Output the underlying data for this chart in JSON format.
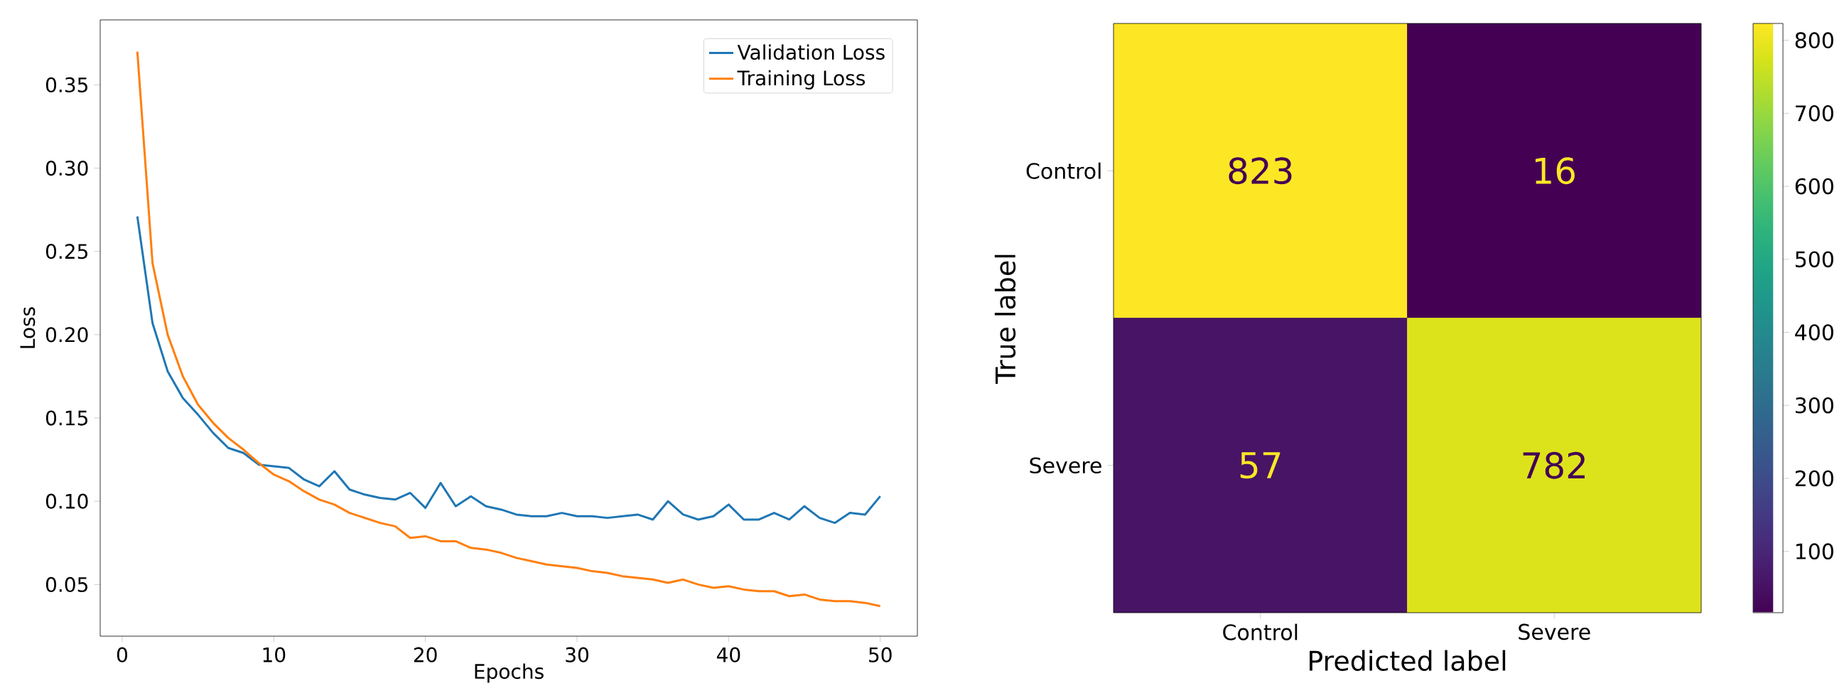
{
  "chart_data": [
    {
      "type": "line",
      "xlabel": "Epochs",
      "ylabel": "Loss",
      "legend": "top right",
      "x": [
        1,
        2,
        3,
        4,
        5,
        6,
        7,
        8,
        9,
        10,
        11,
        12,
        13,
        14,
        15,
        16,
        17,
        18,
        19,
        20,
        21,
        22,
        23,
        24,
        25,
        26,
        27,
        28,
        29,
        30,
        31,
        32,
        33,
        34,
        35,
        36,
        37,
        38,
        39,
        40,
        41,
        42,
        43,
        44,
        45,
        46,
        47,
        48,
        49,
        50
      ],
      "xlim": [
        -1.45,
        52.45
      ],
      "xticks": [
        0,
        10,
        20,
        30,
        40,
        50
      ],
      "ylim": [
        0.019,
        0.389
      ],
      "yticks": [
        {
          "value": 0.05,
          "label": "0.05"
        },
        {
          "value": 0.1,
          "label": "0.10"
        },
        {
          "value": 0.15,
          "label": "0.15"
        },
        {
          "value": 0.2,
          "label": "0.20"
        },
        {
          "value": 0.25,
          "label": "0.25"
        },
        {
          "value": 0.3,
          "label": "0.30"
        },
        {
          "value": 0.35,
          "label": "0.35"
        }
      ],
      "series": [
        {
          "name": "Validation Loss",
          "color": "#1f77b4",
          "values": [
            0.271,
            0.207,
            0.178,
            0.162,
            0.152,
            0.141,
            0.132,
            0.129,
            0.122,
            0.121,
            0.12,
            0.113,
            0.109,
            0.118,
            0.107,
            0.104,
            0.102,
            0.101,
            0.105,
            0.096,
            0.111,
            0.097,
            0.103,
            0.097,
            0.095,
            0.092,
            0.091,
            0.091,
            0.093,
            0.091,
            0.091,
            0.09,
            0.091,
            0.092,
            0.089,
            0.1,
            0.092,
            0.089,
            0.091,
            0.098,
            0.089,
            0.089,
            0.093,
            0.089,
            0.097,
            0.09,
            0.087,
            0.093,
            0.092,
            0.103
          ]
        },
        {
          "name": "Training Loss",
          "color": "#ff7f0e",
          "values": [
            0.37,
            0.243,
            0.2,
            0.175,
            0.158,
            0.147,
            0.138,
            0.131,
            0.123,
            0.116,
            0.112,
            0.106,
            0.101,
            0.098,
            0.093,
            0.09,
            0.087,
            0.085,
            0.078,
            0.079,
            0.076,
            0.076,
            0.072,
            0.071,
            0.069,
            0.066,
            0.064,
            0.062,
            0.061,
            0.06,
            0.058,
            0.057,
            0.055,
            0.054,
            0.053,
            0.051,
            0.053,
            0.05,
            0.048,
            0.049,
            0.047,
            0.046,
            0.046,
            0.043,
            0.044,
            0.041,
            0.04,
            0.04,
            0.039,
            0.037
          ]
        }
      ]
    },
    {
      "type": "heatmap",
      "xlabel": "Predicted label",
      "ylabel": "True label",
      "categories": [
        "Control",
        "Severe"
      ],
      "y_categories": [
        "Control",
        "Severe"
      ],
      "cells": [
        [
          823,
          16
        ],
        [
          57,
          782
        ]
      ],
      "data_labels": true,
      "clim": [
        16,
        823
      ],
      "cticks": [
        100,
        200,
        300,
        400,
        500,
        600,
        700,
        800
      ]
    }
  ]
}
